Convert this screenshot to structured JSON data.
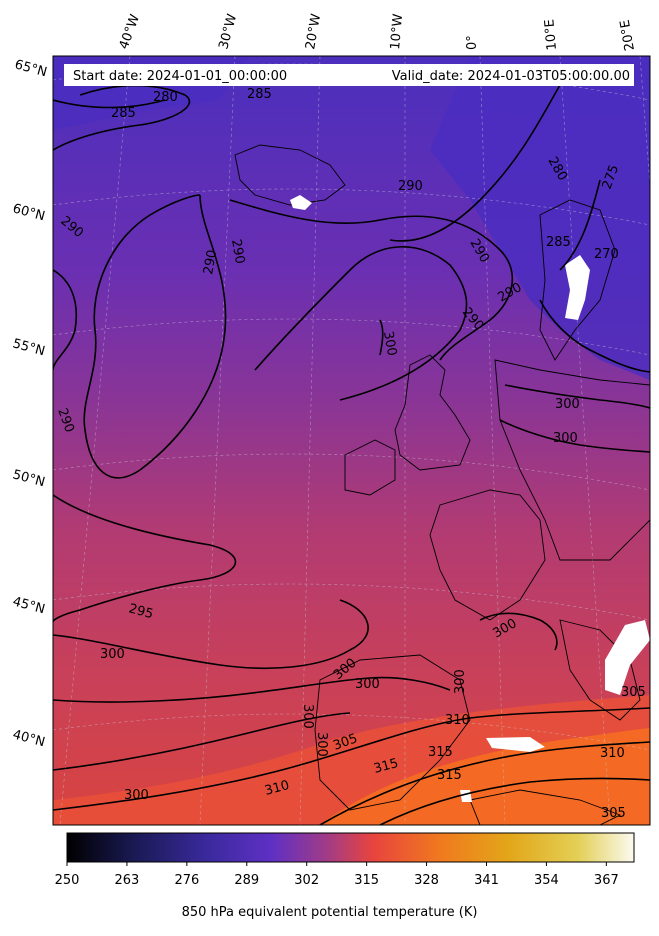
{
  "header": {
    "start_label": "Start date: 2024-01-01_00:00:00",
    "valid_label": "Valid_date: 2024-01-03T05:00:00.00"
  },
  "map": {
    "longitude_labels": [
      "40°W",
      "30°W",
      "20°W",
      "10°W",
      "0°",
      "10°E",
      "20°E"
    ],
    "latitude_labels": [
      "65°N",
      "60°N",
      "55°N",
      "50°N",
      "45°N",
      "40°N"
    ],
    "contour_labels": [
      "280",
      "285",
      "285",
      "290",
      "290",
      "290",
      "290",
      "290",
      "290",
      "290",
      "280",
      "275",
      "285",
      "270",
      "290",
      "300",
      "300",
      "300",
      "295",
      "300",
      "300",
      "300",
      "300",
      "300",
      "300",
      "300",
      "305",
      "310",
      "310",
      "315",
      "315",
      "315",
      "310",
      "300",
      "305",
      "305"
    ],
    "colors": {
      "cold": "#4a2fb8",
      "cool": "#6a2fb0",
      "mid": "#b83a70",
      "warm": "#d9443f",
      "hot": "#f26a1f",
      "land_edge": "#000000",
      "contour": "#000000"
    }
  },
  "colorbar": {
    "title": "850 hPa equivalent potential temperature (K)",
    "ticks": [
      "250",
      "263",
      "276",
      "289",
      "302",
      "315",
      "328",
      "341",
      "354",
      "367"
    ],
    "range": [
      250,
      373
    ],
    "colormap": "CMRmap"
  }
}
